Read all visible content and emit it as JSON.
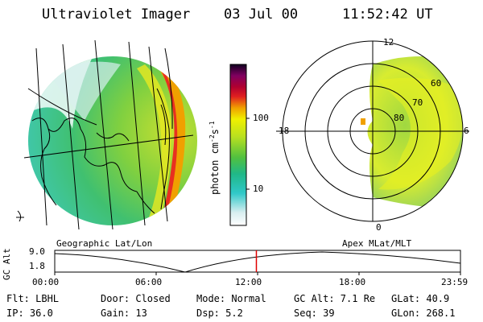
{
  "header": {
    "instrument": "Ultraviolet Imager",
    "date": "03 Jul 00",
    "time": "11:52:42 UT"
  },
  "panels": {
    "left_label": "Geographic Lat/Lon",
    "right_label": "Apex MLat/MLT"
  },
  "colorbar": {
    "unit_label": "photon cm",
    "unit_exp1": "-2",
    "unit_mid": "s",
    "unit_exp2": "-1",
    "ticks": [
      "100",
      "10"
    ]
  },
  "polar": {
    "mlt_labels": [
      "12",
      "18",
      "6",
      "0"
    ],
    "lat_labels": [
      "60",
      "70",
      "80"
    ]
  },
  "timeline": {
    "axis_label": "GC Alt",
    "y_ticks": [
      "9.0",
      "1.8"
    ],
    "x_ticks": [
      "00:00",
      "06:00",
      "12:00",
      "18:00",
      "23:59"
    ],
    "current_time_fraction": 0.497
  },
  "info": {
    "filter": "Flt: LBHL",
    "door": "Door: Closed",
    "mode": "Mode: Normal",
    "gc_alt": "GC Alt: 7.1 Re",
    "glat": "GLat:  40.9",
    "ip": "IP: 36.0",
    "gain": "Gain: 13",
    "dsp": "Dsp:    5.2",
    "seq": "Seq: 39",
    "glon": "GLon: 268.1"
  },
  "colors": {
    "marker": "#e00000",
    "ring": "#000000"
  }
}
